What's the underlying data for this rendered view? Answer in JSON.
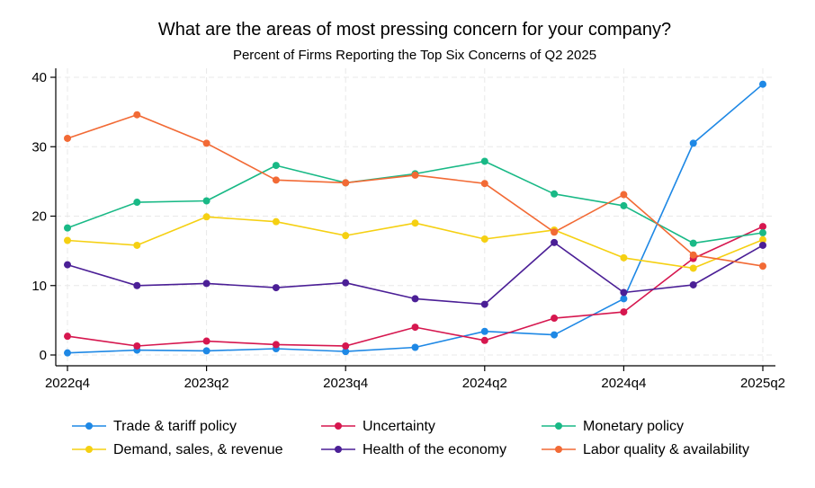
{
  "chart_data": {
    "type": "line",
    "title": "What are the areas of most pressing concern for your company?",
    "subtitle": "Percent of Firms Reporting the Top Six Concerns of Q2 2025",
    "xlabel": "",
    "ylabel": "",
    "ylim": [
      0,
      40
    ],
    "yticks": [
      0,
      10,
      20,
      30,
      40
    ],
    "x": [
      "2022q4",
      "2023q1",
      "2023q2",
      "2023q3",
      "2023q4",
      "2024q1",
      "2024q2",
      "2024q3",
      "2024q4",
      "2025q1",
      "2025q2"
    ],
    "xtick_labels": [
      "2022q4",
      "2023q2",
      "2023q4",
      "2024q2",
      "2024q4",
      "2025q2"
    ],
    "grid": true,
    "legend_position": "bottom",
    "series": [
      {
        "name": "Trade & tariff policy",
        "color": "#1e88e5",
        "values": [
          0.3,
          0.7,
          0.6,
          0.9,
          0.5,
          1.1,
          3.4,
          2.9,
          8.1,
          30.5,
          39.0
        ]
      },
      {
        "name": "Uncertainty",
        "color": "#d6174f",
        "values": [
          2.7,
          1.3,
          2.0,
          1.5,
          1.3,
          4.0,
          2.1,
          5.3,
          6.2,
          13.9,
          18.5
        ]
      },
      {
        "name": "Monetary policy",
        "color": "#19b986",
        "values": [
          18.3,
          22.0,
          22.2,
          27.3,
          24.8,
          26.1,
          27.9,
          23.2,
          21.5,
          16.1,
          17.6
        ]
      },
      {
        "name": "Demand, sales, & revenue",
        "color": "#f5d012",
        "values": [
          16.5,
          15.8,
          19.9,
          19.2,
          17.2,
          19.0,
          16.7,
          18.0,
          14.0,
          12.5,
          16.6
        ]
      },
      {
        "name": "Health of the economy",
        "color": "#4b1f96",
        "values": [
          13.0,
          10.0,
          10.3,
          9.7,
          10.4,
          8.1,
          7.3,
          16.2,
          9.0,
          10.1,
          15.8
        ]
      },
      {
        "name": "Labor quality & availability",
        "color": "#f26a35",
        "values": [
          31.2,
          34.6,
          30.5,
          25.2,
          24.8,
          25.9,
          24.7,
          17.7,
          23.1,
          14.4,
          12.8
        ]
      }
    ]
  }
}
